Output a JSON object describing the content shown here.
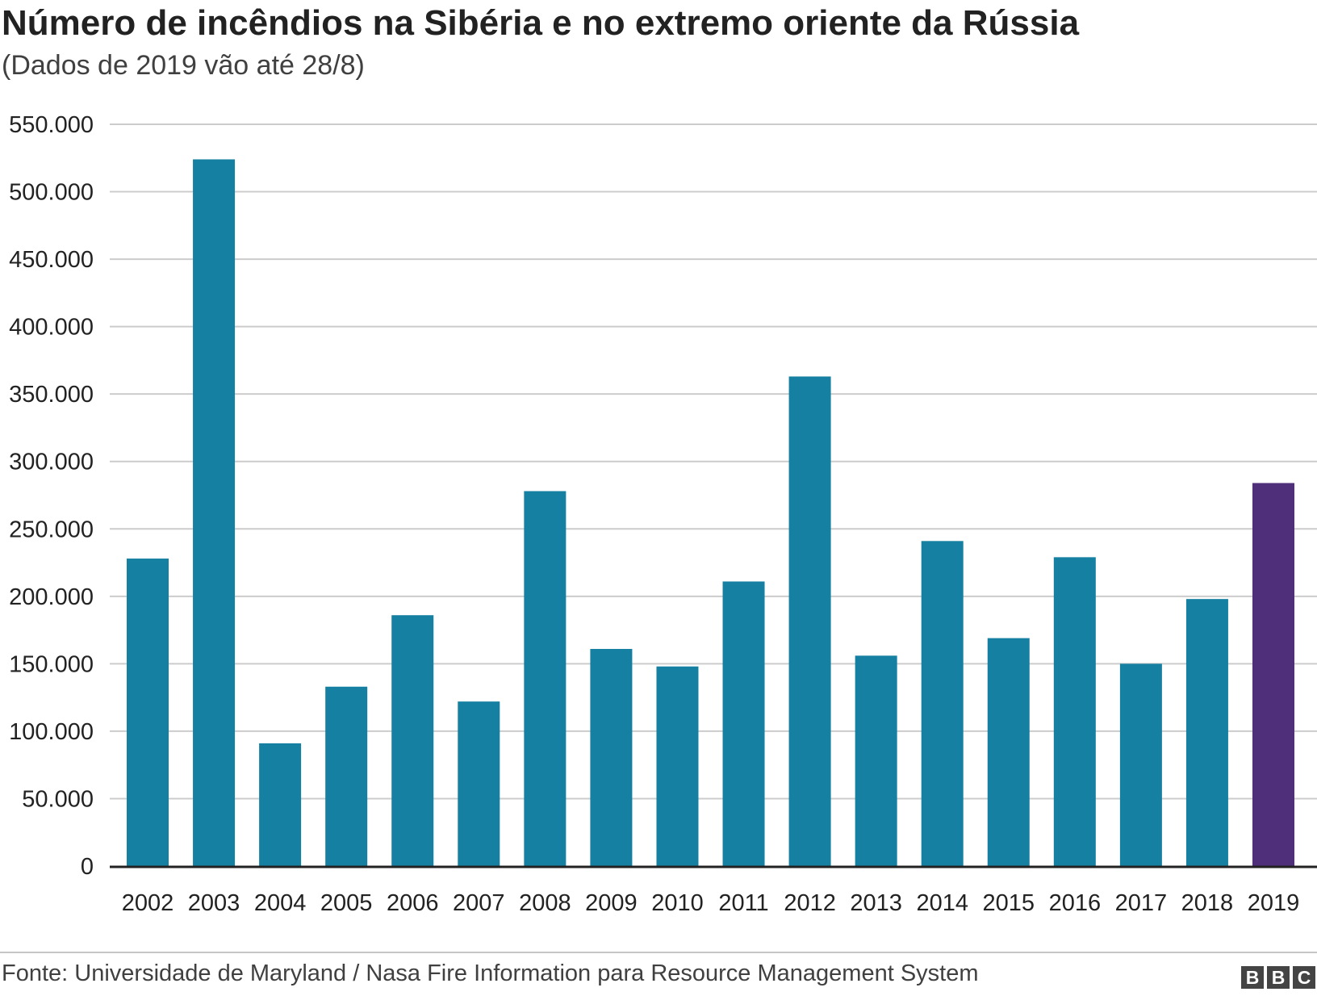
{
  "chart_data": {
    "type": "bar",
    "title": "Número de incêndios na Sibéria e no extremo oriente da Rússia",
    "subtitle": "(Dados de 2019 vão até 28/8)",
    "xlabel": "",
    "ylabel": "",
    "categories": [
      "2002",
      "2003",
      "2004",
      "2005",
      "2006",
      "2007",
      "2008",
      "2009",
      "2010",
      "2011",
      "2012",
      "2013",
      "2014",
      "2015",
      "2016",
      "2017",
      "2018",
      "2019"
    ],
    "values": [
      228000,
      524000,
      91000,
      133000,
      186000,
      122000,
      278000,
      161000,
      148000,
      211000,
      363000,
      156000,
      241000,
      169000,
      229000,
      150000,
      198000,
      284000
    ],
    "ylim": [
      0,
      550000
    ],
    "yticks": [
      0,
      50000,
      100000,
      150000,
      200000,
      250000,
      300000,
      350000,
      400000,
      450000,
      500000,
      550000
    ],
    "ytick_labels": [
      "0",
      "50.000",
      "100.000",
      "150.000",
      "200.000",
      "250.000",
      "300.000",
      "350.000",
      "400.000",
      "450.000",
      "500.000",
      "550.000"
    ],
    "grid": true,
    "bar_color": "#1580a1",
    "highlight_color": "#4f2e7a",
    "highlight_category": "2019"
  },
  "footer": {
    "source": "Fonte: Universidade de Maryland / Nasa Fire Information para Resource Management System",
    "logo_letters": [
      "B",
      "B",
      "C"
    ]
  }
}
